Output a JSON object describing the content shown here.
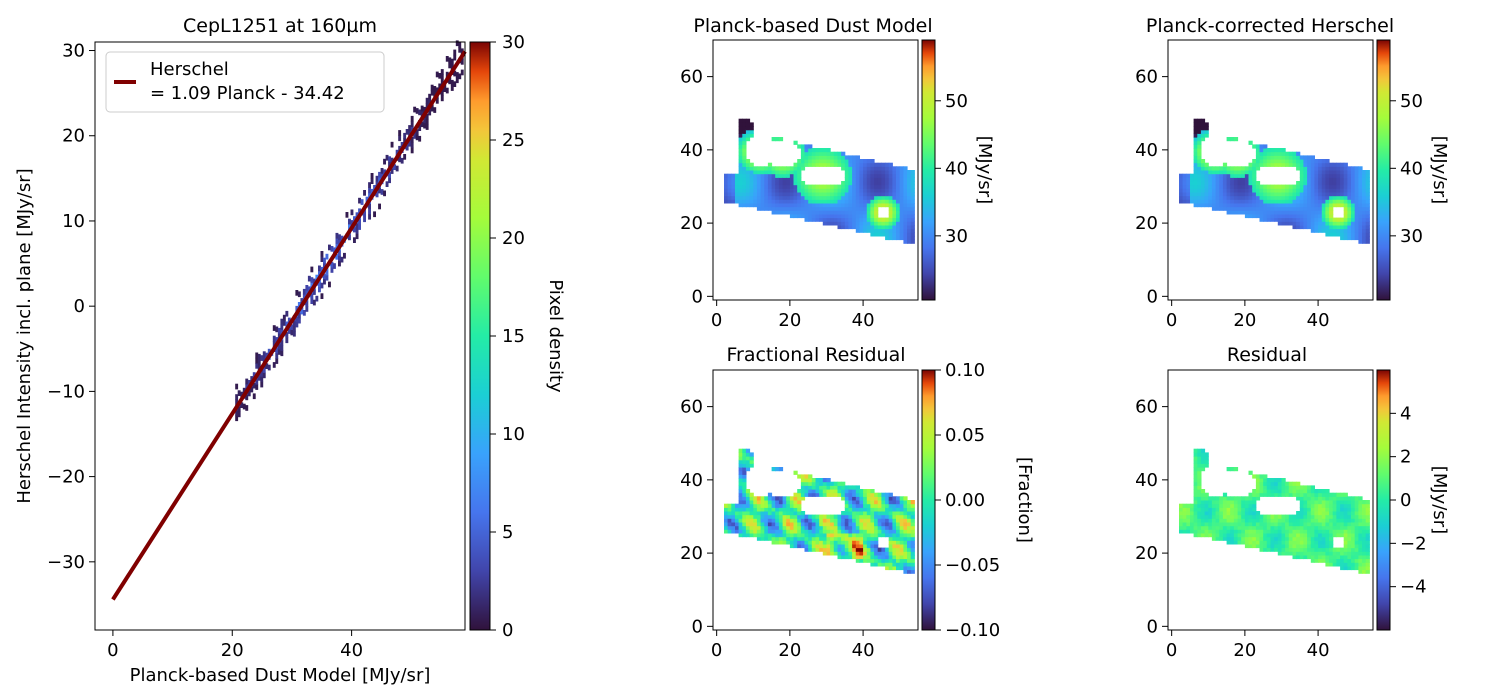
{
  "chart_data": [
    {
      "type": "scatter",
      "subtype": "2d-histogram-with-fit",
      "title": "CepL1251 at 160µm",
      "xlabel": "Planck-based Dust Model [MJy/sr]",
      "ylabel": "Herschel Intensity incl. plane [MJy/sr]",
      "xlim": [
        -3,
        59
      ],
      "ylim": [
        -38,
        31
      ],
      "xticks": [
        0,
        20,
        40
      ],
      "yticks": [
        -30,
        -20,
        -10,
        0,
        10,
        20,
        30
      ],
      "fit": {
        "slope": 1.09,
        "intercept": -34.42,
        "color": "#800000"
      },
      "legend": {
        "label_line1": "Herschel",
        "label_line2": "= 1.09 Planck - 34.42",
        "placement": "upper-left"
      },
      "density_range": [
        20.5,
        58.5
      ],
      "colorbar": {
        "label": "Pixel density",
        "range": [
          0,
          30
        ],
        "ticks": [
          0,
          5,
          10,
          15,
          20,
          25,
          30
        ]
      },
      "grid": false
    },
    {
      "type": "heatmap",
      "title": "Planck-based Dust Model",
      "xticks": [
        0,
        20,
        40
      ],
      "yticks": [
        0,
        20,
        40,
        60
      ],
      "xlim": [
        -1,
        55
      ],
      "ylim": [
        -1,
        70
      ],
      "colorbar": {
        "label": "[MJy/sr]",
        "range": [
          20.5,
          59
        ],
        "ticks": [
          30,
          40,
          50
        ]
      }
    },
    {
      "type": "heatmap",
      "title": "Planck-corrected Herschel",
      "xticks": [
        0,
        20,
        40
      ],
      "yticks": [
        0,
        20,
        40,
        60
      ],
      "xlim": [
        -1,
        55
      ],
      "ylim": [
        -1,
        70
      ],
      "colorbar": {
        "label": "[MJy/sr]",
        "range": [
          20.5,
          59
        ],
        "ticks": [
          30,
          40,
          50
        ]
      }
    },
    {
      "type": "heatmap",
      "title": "Fractional Residual",
      "xticks": [
        0,
        20,
        40
      ],
      "yticks": [
        0,
        20,
        40,
        60
      ],
      "xlim": [
        -1,
        55
      ],
      "ylim": [
        -1,
        70
      ],
      "colorbar": {
        "label": "[Fraction]",
        "range": [
          -0.1,
          0.1
        ],
        "ticks": [
          "0.10",
          "0.05",
          "0.00",
          "−0.05",
          "−0.10"
        ]
      }
    },
    {
      "type": "heatmap",
      "title": "Residual",
      "xticks": [
        0,
        20,
        40
      ],
      "yticks": [
        0,
        20,
        40,
        60
      ],
      "xlim": [
        -1,
        55
      ],
      "ylim": [
        -1,
        70
      ],
      "colorbar": {
        "label": "[MJy/sr]",
        "range": [
          -6,
          6
        ],
        "ticks": [
          "4",
          "2",
          "0",
          "−2",
          "−4"
        ]
      }
    }
  ],
  "colormap": "turbo"
}
